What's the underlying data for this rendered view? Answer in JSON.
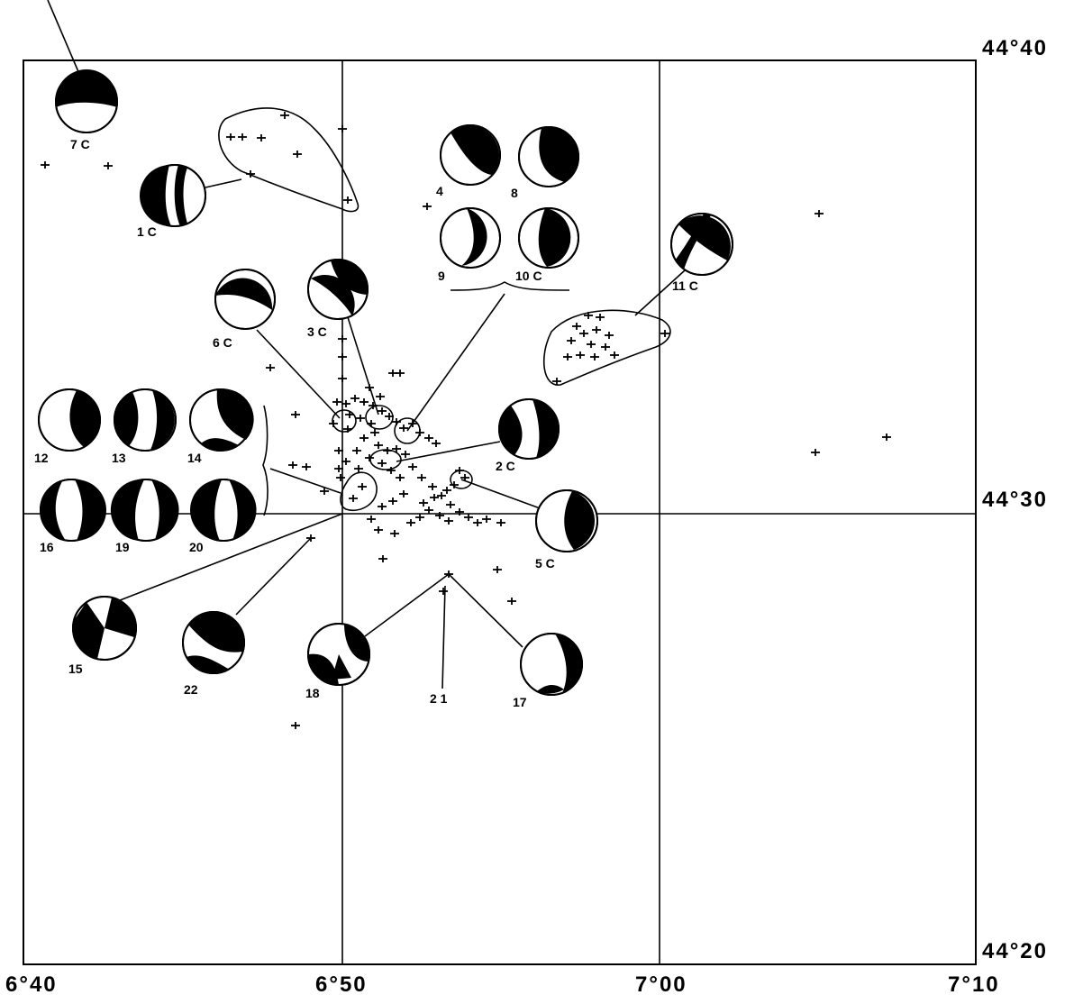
{
  "map": {
    "lon_labels": [
      "6°40",
      "6°50",
      "7°00",
      "7°10"
    ],
    "lat_labels": [
      "44°40",
      "44°30",
      "44°20"
    ],
    "colors": {
      "ink": "#000000",
      "paper": "#ffffff"
    },
    "events": [
      {
        "id": "7c",
        "label": "7 C"
      },
      {
        "id": "1c",
        "label": "1 C"
      },
      {
        "id": "4",
        "label": "4"
      },
      {
        "id": "8",
        "label": "8"
      },
      {
        "id": "9",
        "label": "9"
      },
      {
        "id": "10c",
        "label": "10 C"
      },
      {
        "id": "11c",
        "label": "11 C"
      },
      {
        "id": "6c",
        "label": "6 C"
      },
      {
        "id": "3c",
        "label": "3 C"
      },
      {
        "id": "12",
        "label": "12"
      },
      {
        "id": "13",
        "label": "13"
      },
      {
        "id": "14",
        "label": "14"
      },
      {
        "id": "2c",
        "label": "2 C"
      },
      {
        "id": "16",
        "label": "16"
      },
      {
        "id": "19",
        "label": "19"
      },
      {
        "id": "20",
        "label": "20"
      },
      {
        "id": "5c",
        "label": "5 C"
      },
      {
        "id": "15",
        "label": "15"
      },
      {
        "id": "22",
        "label": "22"
      },
      {
        "id": "18",
        "label": "18"
      },
      {
        "id": "21",
        "label": "2 1"
      },
      {
        "id": "17",
        "label": "17"
      }
    ]
  }
}
